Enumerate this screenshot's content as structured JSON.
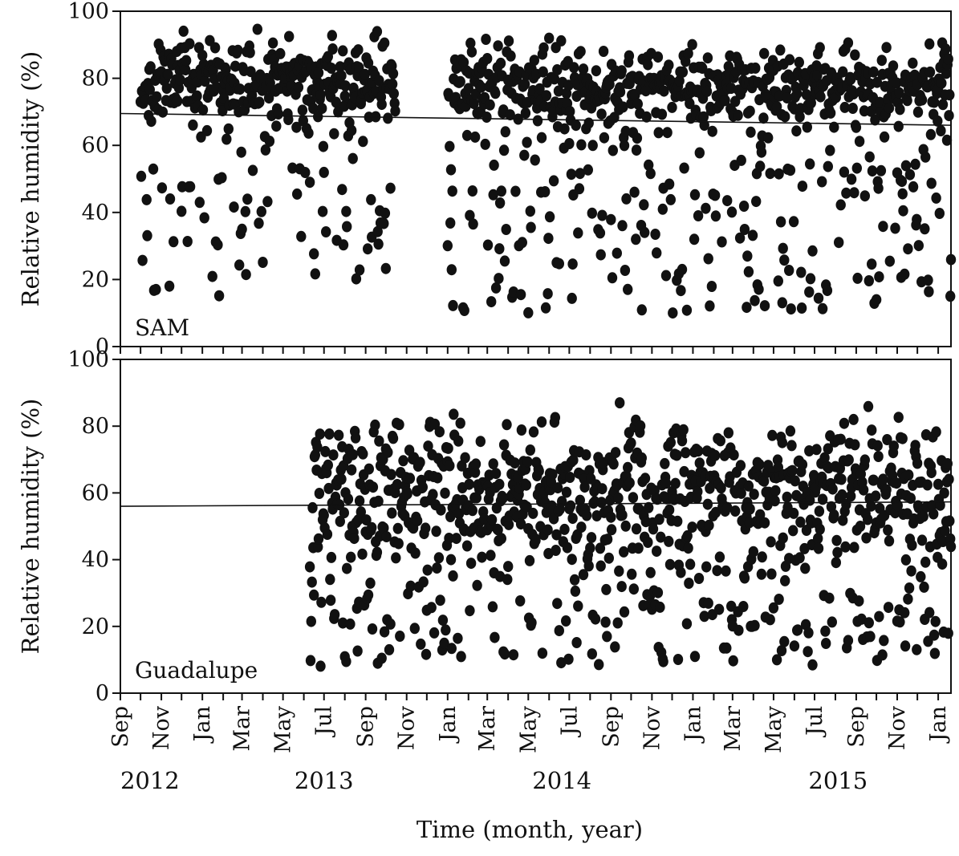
{
  "chart_data": [
    {
      "type": "scatter",
      "panel_label": "SAM",
      "ylabel": "Relative humidity (%)",
      "xlabel": "",
      "ylim": [
        0,
        100
      ],
      "yticks": [
        0,
        20,
        40,
        60,
        80,
        100
      ],
      "xlim": [
        "2012-09-01",
        "2016-01-20"
      ],
      "marker_color": "#111111",
      "trend": {
        "start": {
          "date": "2012-09-01",
          "y": 69.5
        },
        "end": {
          "date": "2016-01-20",
          "y": 66.0
        }
      },
      "segments": [
        {
          "start": "2012-10-01",
          "end": "2013-10-15",
          "center": 79,
          "spread": 14,
          "lowProb": 0.22,
          "lowMin": 15,
          "lowMax": 65,
          "seed": 11
        },
        {
          "start": "2014-01-01",
          "end": "2016-01-20",
          "center": 77,
          "spread": 13,
          "lowProb": 0.27,
          "lowMin": 10,
          "lowMax": 65,
          "seed": 23
        }
      ]
    },
    {
      "type": "scatter",
      "panel_label": "Guadalupe",
      "ylabel": "Relative humidity (%)",
      "xlabel": "Time (month, year)",
      "ylim": [
        0,
        100
      ],
      "yticks": [
        0,
        20,
        40,
        60,
        80,
        100
      ],
      "xlim": [
        "2012-09-01",
        "2016-01-20"
      ],
      "marker_color": "#111111",
      "trend": {
        "start": {
          "date": "2012-09-01",
          "y": 56.0
        },
        "end": {
          "date": "2016-01-20",
          "y": 57.3
        }
      },
      "segments": [
        {
          "start": "2013-06-10",
          "end": "2016-01-20",
          "center": 62,
          "spread": 20,
          "lowProb": 0.33,
          "lowMin": 8,
          "lowMax": 55,
          "seed": 37
        }
      ]
    }
  ],
  "x_axis": {
    "month_ticks": [
      {
        "date": "2012-09-01",
        "label": "Sep"
      },
      {
        "date": "2012-10-01",
        "label": ""
      },
      {
        "date": "2012-11-01",
        "label": "Nov"
      },
      {
        "date": "2012-12-01",
        "label": ""
      },
      {
        "date": "2013-01-01",
        "label": "Jan"
      },
      {
        "date": "2013-02-01",
        "label": ""
      },
      {
        "date": "2013-03-01",
        "label": "Mar"
      },
      {
        "date": "2013-04-01",
        "label": ""
      },
      {
        "date": "2013-05-01",
        "label": "May"
      },
      {
        "date": "2013-06-01",
        "label": ""
      },
      {
        "date": "2013-07-01",
        "label": "Jul"
      },
      {
        "date": "2013-08-01",
        "label": ""
      },
      {
        "date": "2013-09-01",
        "label": "Sep"
      },
      {
        "date": "2013-10-01",
        "label": ""
      },
      {
        "date": "2013-11-01",
        "label": "Nov"
      },
      {
        "date": "2013-12-01",
        "label": ""
      },
      {
        "date": "2014-01-01",
        "label": "Jan"
      },
      {
        "date": "2014-02-01",
        "label": ""
      },
      {
        "date": "2014-03-01",
        "label": "Mar"
      },
      {
        "date": "2014-04-01",
        "label": ""
      },
      {
        "date": "2014-05-01",
        "label": "May"
      },
      {
        "date": "2014-06-01",
        "label": ""
      },
      {
        "date": "2014-07-01",
        "label": "Jul"
      },
      {
        "date": "2014-08-01",
        "label": ""
      },
      {
        "date": "2014-09-01",
        "label": "Sep"
      },
      {
        "date": "2014-10-01",
        "label": ""
      },
      {
        "date": "2014-11-01",
        "label": "Nov"
      },
      {
        "date": "2014-12-01",
        "label": ""
      },
      {
        "date": "2015-01-01",
        "label": "Jan"
      },
      {
        "date": "2015-02-01",
        "label": ""
      },
      {
        "date": "2015-03-01",
        "label": "Mar"
      },
      {
        "date": "2015-04-01",
        "label": ""
      },
      {
        "date": "2015-05-01",
        "label": "May"
      },
      {
        "date": "2015-06-01",
        "label": ""
      },
      {
        "date": "2015-07-01",
        "label": "Jul"
      },
      {
        "date": "2015-08-01",
        "label": ""
      },
      {
        "date": "2015-09-01",
        "label": "Sep"
      },
      {
        "date": "2015-10-01",
        "label": ""
      },
      {
        "date": "2015-11-01",
        "label": "Nov"
      },
      {
        "date": "2015-12-01",
        "label": ""
      },
      {
        "date": "2016-01-01",
        "label": "Jan"
      }
    ],
    "year_labels": [
      {
        "date": "2012-10-15",
        "label": "2012"
      },
      {
        "date": "2013-07-01",
        "label": "2013"
      },
      {
        "date": "2014-06-20",
        "label": "2014"
      },
      {
        "date": "2015-08-05",
        "label": "2015"
      }
    ]
  }
}
